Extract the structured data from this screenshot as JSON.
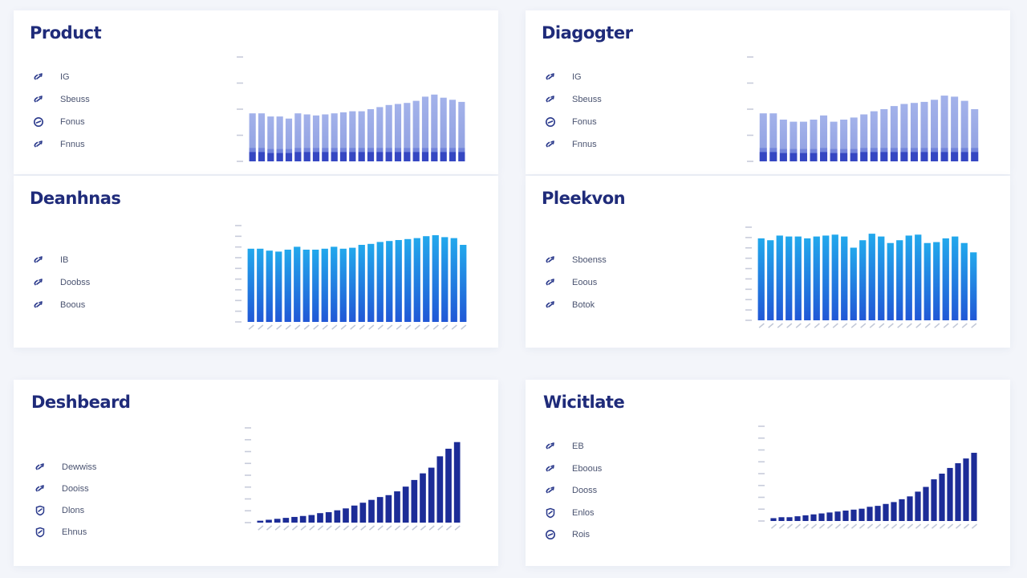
{
  "colors": {
    "page_bg": "#f3f5fa",
    "card_bg": "#ffffff",
    "title": "#1f2b7a",
    "icon": "#2b3a8c",
    "periwinkle_top": "#a3b2ea",
    "periwinkle_mid": "#8e9ee0",
    "periwinkle_base": "#2b3dbf",
    "cyan_top": "#22a8ec",
    "cyan_bottom": "#2158d6",
    "navy": "#1c2c97"
  },
  "cards": [
    {
      "title": "Product",
      "legend": [
        {
          "label": "IG",
          "icon": "link-arrow-icon"
        },
        {
          "label": "Sbeuss",
          "icon": "link-arrow-icon"
        },
        {
          "label": "Fonus",
          "icon": "circle-link-icon"
        },
        {
          "label": "Fnnus",
          "icon": "link-arrow-icon"
        }
      ],
      "chart_data": {
        "type": "bar",
        "style": "stacked-periwinkle",
        "values": [
          46,
          46,
          43,
          43,
          41,
          46,
          45,
          44,
          45,
          46,
          47,
          48,
          48,
          50,
          52,
          54,
          55,
          56,
          58,
          62,
          64,
          61,
          59,
          57
        ],
        "base_values": [
          9,
          9,
          8,
          8,
          8,
          9,
          9,
          9,
          9,
          9,
          9,
          9,
          9,
          9,
          9,
          9,
          9,
          9,
          9,
          9,
          9,
          9,
          9,
          9
        ],
        "ylim": [
          0,
          100
        ],
        "grid": false
      }
    },
    {
      "title": "Diagogter",
      "legend": [
        {
          "label": "IG",
          "icon": "link-arrow-icon"
        },
        {
          "label": "Sbeuss",
          "icon": "link-arrow-icon"
        },
        {
          "label": "Fonus",
          "icon": "circle-link-icon"
        },
        {
          "label": "Fnnus",
          "icon": "link-arrow-icon"
        }
      ],
      "chart_data": {
        "type": "bar",
        "style": "stacked-periwinkle",
        "values": [
          46,
          46,
          40,
          38,
          38,
          40,
          44,
          38,
          40,
          42,
          45,
          48,
          50,
          53,
          55,
          56,
          57,
          59,
          63,
          62,
          58,
          50
        ],
        "base_values": [
          9,
          9,
          8,
          8,
          8,
          8,
          9,
          8,
          8,
          8,
          9,
          9,
          9,
          9,
          9,
          9,
          9,
          9,
          9,
          9,
          9,
          9
        ],
        "ylim": [
          0,
          100
        ],
        "grid": false
      }
    },
    {
      "title": "Deanhnas",
      "legend": [
        {
          "label": "IB",
          "icon": "link-arrow-icon"
        },
        {
          "label": "Doobss",
          "icon": "link-arrow-icon"
        },
        {
          "label": "Boous",
          "icon": "link-arrow-icon"
        }
      ],
      "chart_data": {
        "type": "bar",
        "style": "gradient-cyan",
        "values": [
          76,
          76,
          74,
          73,
          75,
          78,
          75,
          75,
          76,
          78,
          76,
          77,
          80,
          81,
          83,
          84,
          85,
          86,
          87,
          89,
          90,
          88,
          87,
          80
        ],
        "ylim": [
          0,
          100
        ],
        "grid": false
      }
    },
    {
      "title": "Pleekvon",
      "legend": [
        {
          "label": "Sboenss",
          "icon": "link-arrow-icon"
        },
        {
          "label": "Eoous",
          "icon": "link-arrow-icon"
        },
        {
          "label": "Botok",
          "icon": "link-arrow-icon"
        }
      ],
      "chart_data": {
        "type": "bar",
        "style": "gradient-cyan",
        "values": [
          88,
          86,
          91,
          90,
          90,
          88,
          90,
          91,
          92,
          90,
          78,
          86,
          93,
          90,
          83,
          86,
          91,
          92,
          83,
          84,
          88,
          90,
          83,
          73
        ],
        "ylim": [
          0,
          100
        ],
        "grid": false
      }
    },
    {
      "title": "Deshbeard",
      "legend": [
        {
          "label": "Dewwiss",
          "icon": "link-arrow-icon"
        },
        {
          "label": "Dooiss",
          "icon": "link-arrow-icon"
        },
        {
          "label": "Dlons",
          "icon": "shield-link-icon"
        },
        {
          "label": "Ehnus",
          "icon": "shield-link-icon"
        }
      ],
      "chart_data": {
        "type": "bar",
        "style": "solid-navy",
        "values": [
          2,
          3,
          4,
          5,
          6,
          7,
          8,
          10,
          11,
          13,
          15,
          18,
          21,
          24,
          27,
          29,
          33,
          38,
          45,
          52,
          58,
          70,
          78,
          85
        ],
        "ylim": [
          0,
          100
        ],
        "grid": false
      }
    },
    {
      "title": "Wicitlate",
      "legend": [
        {
          "label": "EB",
          "icon": "link-arrow-icon"
        },
        {
          "label": "Eboous",
          "icon": "link-arrow-icon"
        },
        {
          "label": "Dooss",
          "icon": "link-arrow-icon"
        },
        {
          "label": "Enlos",
          "icon": "shield-link-icon"
        },
        {
          "label": "Rois",
          "icon": "circle-link-icon"
        }
      ],
      "chart_data": {
        "type": "bar",
        "style": "solid-navy",
        "values": [
          3,
          4,
          4,
          5,
          6,
          7,
          8,
          9,
          10,
          11,
          12,
          13,
          15,
          16,
          18,
          20,
          23,
          26,
          31,
          36,
          44,
          50,
          56,
          61,
          66,
          72
        ],
        "ylim": [
          0,
          100
        ],
        "grid": false
      }
    }
  ]
}
